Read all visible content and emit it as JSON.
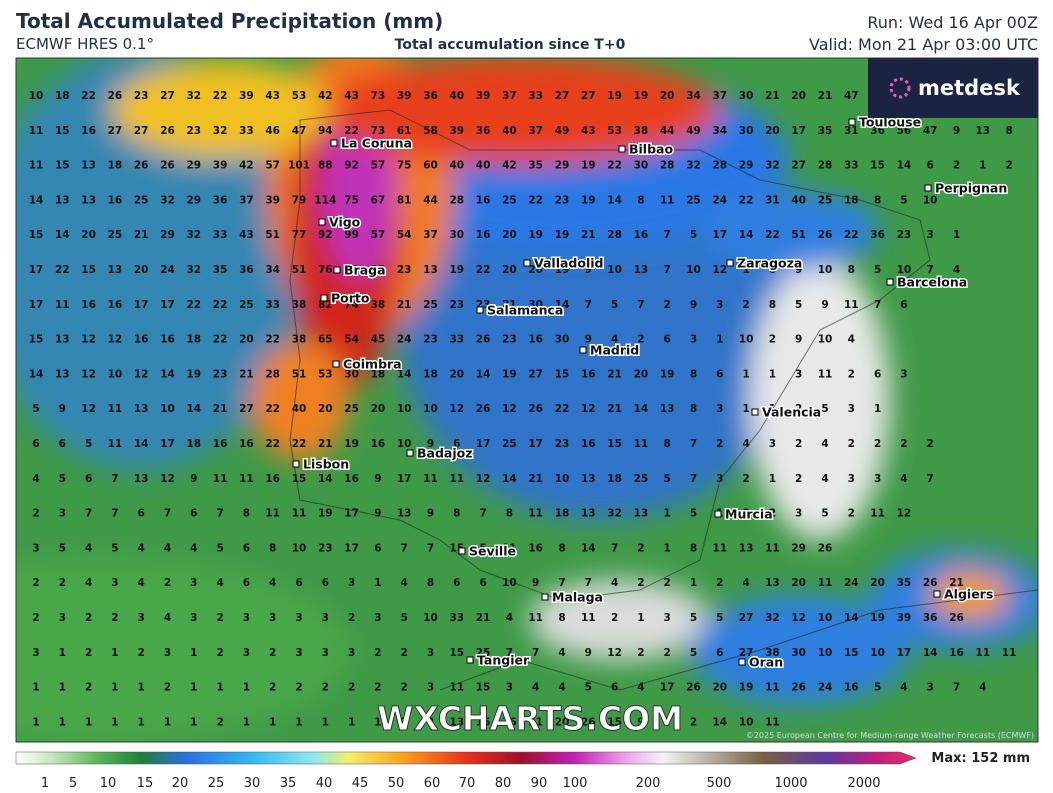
{
  "header": {
    "title": "Total Accumulated Precipitation (mm)",
    "model": "ECMWF HRES 0.1°",
    "subtitle": "Total accumulation since T+0",
    "run": "Run: Wed 16 Apr 00Z",
    "valid": "Valid: Mon 21 Apr 03:00 UTC"
  },
  "logo": "metdesk",
  "watermark": "WXCHARTS.COM",
  "copyright": "©2025 European Centre for Medium-range Weather Forecasts (ECMWF)",
  "cities": [
    "La Coruna",
    "Bilbao",
    "Toulouse",
    "Perpignan",
    "Vigo",
    "Braga",
    "Valladolid",
    "Zaragoza",
    "Barcelona",
    "Porto",
    "Salamanca",
    "Madrid",
    "Coimbra",
    "Valencia",
    "Lisbon",
    "Badajoz",
    "Murcia",
    "Seville",
    "Malaga",
    "Algiers",
    "Tangier",
    "Oran"
  ],
  "grid_values": [
    [
      10,
      18,
      22,
      26,
      23,
      27,
      32,
      22,
      39,
      43,
      53,
      42,
      43,
      73,
      39,
      36,
      40,
      39,
      37,
      33,
      27,
      27,
      19,
      19,
      20,
      34,
      37,
      30,
      21,
      20,
      21,
      47
    ],
    [
      11,
      15,
      16,
      27,
      27,
      26,
      23,
      32,
      33,
      46,
      47,
      94,
      22,
      73,
      61,
      58,
      39,
      36,
      40,
      37,
      49,
      43,
      53,
      38,
      44,
      49,
      34,
      30,
      20,
      17,
      35,
      31,
      36,
      56,
      47,
      9,
      13,
      8
    ],
    [
      11,
      15,
      13,
      18,
      26,
      26,
      29,
      39,
      42,
      57,
      101,
      88,
      92,
      57,
      75,
      60,
      40,
      40,
      42,
      35,
      29,
      19,
      22,
      30,
      28,
      32,
      28,
      29,
      32,
      27,
      28,
      33,
      15,
      14,
      6,
      2,
      1,
      2
    ],
    [
      14,
      13,
      13,
      16,
      25,
      32,
      29,
      36,
      37,
      39,
      79,
      114,
      75,
      67,
      81,
      44,
      28,
      16,
      25,
      22,
      23,
      19,
      14,
      8,
      11,
      25,
      24,
      22,
      31,
      40,
      25,
      18,
      8,
      5,
      10
    ],
    [
      15,
      14,
      20,
      25,
      21,
      29,
      32,
      33,
      43,
      51,
      77,
      92,
      99,
      57,
      54,
      37,
      30,
      16,
      20,
      19,
      19,
      21,
      28,
      16,
      7,
      5,
      17,
      14,
      22,
      51,
      26,
      22,
      36,
      23,
      3,
      1
    ],
    [
      17,
      22,
      15,
      13,
      20,
      24,
      32,
      35,
      36,
      34,
      51,
      76,
      29,
      25,
      23,
      13,
      19,
      22,
      20,
      20,
      19,
      9,
      10,
      13,
      7,
      10,
      12,
      1,
      6,
      9,
      10,
      8,
      5,
      10,
      7,
      4
    ],
    [
      17,
      11,
      16,
      16,
      17,
      17,
      22,
      22,
      25,
      33,
      38,
      82,
      74,
      38,
      21,
      25,
      23,
      23,
      21,
      30,
      14,
      7,
      5,
      7,
      2,
      9,
      3,
      2,
      8,
      5,
      9,
      11,
      7,
      6
    ],
    [
      15,
      13,
      12,
      12,
      16,
      16,
      18,
      22,
      20,
      22,
      38,
      65,
      54,
      45,
      24,
      23,
      33,
      26,
      23,
      16,
      30,
      9,
      4,
      2,
      6,
      3,
      1,
      10,
      2,
      9,
      10,
      4
    ],
    [
      14,
      13,
      12,
      10,
      12,
      14,
      19,
      23,
      21,
      28,
      51,
      53,
      30,
      18,
      14,
      18,
      20,
      14,
      19,
      27,
      15,
      16,
      21,
      20,
      19,
      8,
      6,
      1,
      1,
      3,
      11,
      2,
      6,
      3
    ],
    [
      5,
      9,
      12,
      11,
      13,
      10,
      14,
      21,
      27,
      22,
      40,
      20,
      25,
      20,
      10,
      10,
      12,
      26,
      12,
      26,
      22,
      12,
      21,
      14,
      13,
      8,
      3,
      1,
      1,
      2,
      5,
      3,
      1
    ],
    [
      6,
      6,
      5,
      11,
      14,
      17,
      18,
      16,
      16,
      22,
      22,
      21,
      19,
      16,
      10,
      9,
      6,
      17,
      25,
      17,
      23,
      16,
      15,
      11,
      8,
      7,
      2,
      4,
      3,
      2,
      4,
      2,
      2,
      2,
      2
    ],
    [
      4,
      5,
      6,
      7,
      13,
      12,
      9,
      11,
      11,
      16,
      15,
      14,
      16,
      9,
      17,
      11,
      11,
      12,
      14,
      21,
      10,
      13,
      18,
      25,
      5,
      7,
      3,
      2,
      1,
      2,
      4,
      3,
      3,
      4,
      7
    ],
    [
      2,
      3,
      7,
      7,
      6,
      7,
      6,
      7,
      8,
      11,
      11,
      19,
      17,
      9,
      13,
      9,
      8,
      7,
      8,
      11,
      18,
      13,
      32,
      13,
      1,
      5,
      1,
      2,
      2,
      3,
      5,
      2,
      11,
      12
    ],
    [
      3,
      5,
      4,
      5,
      4,
      4,
      4,
      5,
      6,
      8,
      10,
      23,
      17,
      6,
      7,
      7,
      15,
      5,
      11,
      16,
      8,
      14,
      7,
      2,
      1,
      8,
      11,
      13,
      11,
      29,
      26
    ],
    [
      2,
      2,
      4,
      3,
      4,
      2,
      3,
      4,
      6,
      4,
      6,
      6,
      3,
      1,
      4,
      8,
      6,
      6,
      10,
      9,
      7,
      7,
      4,
      2,
      2,
      1,
      2,
      4,
      13,
      20,
      11,
      24,
      20,
      35,
      26,
      21
    ],
    [
      2,
      3,
      2,
      2,
      3,
      4,
      3,
      2,
      3,
      3,
      3,
      3,
      2,
      3,
      5,
      10,
      33,
      21,
      4,
      11,
      8,
      11,
      2,
      1,
      3,
      5,
      5,
      27,
      32,
      12,
      10,
      14,
      19,
      39,
      36,
      26
    ],
    [
      3,
      1,
      2,
      1,
      2,
      3,
      1,
      2,
      3,
      2,
      3,
      3,
      3,
      2,
      2,
      3,
      15,
      25,
      7,
      7,
      4,
      9,
      12,
      2,
      2,
      5,
      6,
      27,
      38,
      30,
      10,
      15,
      10,
      17,
      14,
      16,
      11,
      11
    ],
    [
      1,
      1,
      2,
      1,
      1,
      2,
      1,
      1,
      1,
      2,
      2,
      2,
      2,
      2,
      2,
      3,
      11,
      15,
      3,
      4,
      4,
      5,
      6,
      4,
      17,
      26,
      20,
      19,
      11,
      26,
      24,
      16,
      5,
      4,
      3,
      7,
      4
    ],
    [
      1,
      1,
      1,
      1,
      1,
      1,
      1,
      2,
      1,
      1,
      1,
      1,
      1,
      1,
      2,
      2,
      13,
      15,
      16,
      21,
      20,
      26,
      15,
      9,
      3,
      2,
      14,
      10,
      11
    ]
  ],
  "colorbar": {
    "ticks": [
      1,
      5,
      10,
      15,
      20,
      25,
      30,
      35,
      40,
      45,
      50,
      60,
      70,
      80,
      90,
      100,
      200,
      500,
      1000,
      2000
    ],
    "max_label": "Max: 152 mm"
  }
}
